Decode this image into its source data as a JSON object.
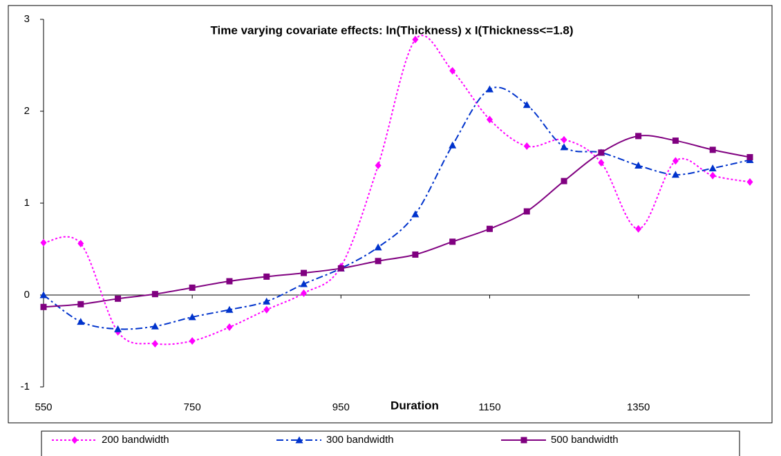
{
  "chart_data": {
    "type": "line",
    "title": "Time varying covariate effects: ln(Thickness) x I(Thickness<=1.8)",
    "x_label": "Duration",
    "x": [
      550,
      600,
      650,
      700,
      750,
      800,
      850,
      900,
      950,
      1000,
      1050,
      1100,
      1150,
      1200,
      1250,
      1300,
      1350,
      1400,
      1450,
      1500
    ],
    "series": [
      {
        "name": "200 bandwidth",
        "color": "#ff00ff",
        "marker": "diamond",
        "dash": "dotted",
        "values": [
          0.57,
          0.56,
          -0.4,
          -0.53,
          -0.5,
          -0.35,
          -0.16,
          0.02,
          0.31,
          1.41,
          2.78,
          2.44,
          1.91,
          1.62,
          1.69,
          1.44,
          0.72,
          1.46,
          1.3,
          1.23
        ]
      },
      {
        "name": "300 bandwidth",
        "color": "#0033cc",
        "marker": "triangle",
        "dash": "dashdot",
        "values": [
          0.0,
          -0.29,
          -0.37,
          -0.34,
          -0.24,
          -0.16,
          -0.07,
          0.12,
          0.29,
          0.52,
          0.88,
          1.63,
          2.24,
          2.07,
          1.61,
          1.55,
          1.41,
          1.31,
          1.38,
          1.47
        ]
      },
      {
        "name": "500 bandwidth",
        "color": "#800080",
        "marker": "square",
        "dash": "solid",
        "values": [
          -0.13,
          -0.1,
          -0.04,
          0.01,
          0.08,
          0.15,
          0.2,
          0.24,
          0.29,
          0.37,
          0.44,
          0.58,
          0.72,
          0.91,
          1.24,
          1.55,
          1.73,
          1.68,
          1.58,
          1.5
        ]
      }
    ],
    "xlim": [
      550,
      1500
    ],
    "xticks": [
      550,
      750,
      950,
      1150,
      1350
    ],
    "ylim": [
      -1,
      3
    ],
    "yticks": [
      -1,
      0,
      1,
      2,
      3
    ],
    "legend": "bottom"
  }
}
